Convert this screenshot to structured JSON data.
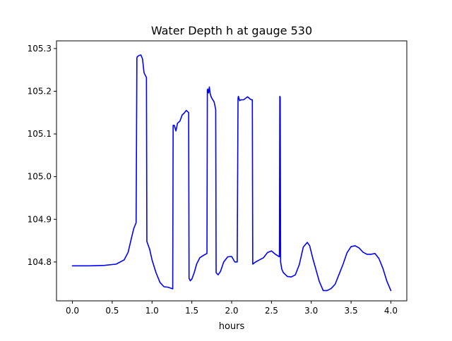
{
  "chart_data": {
    "type": "line",
    "title": "Water Depth h at gauge 530",
    "xlabel": "hours",
    "ylabel": "",
    "xlim": [
      -0.2,
      4.2
    ],
    "ylim": [
      104.709,
      105.318
    ],
    "xticks": [
      0.0,
      0.5,
      1.0,
      1.5,
      2.0,
      2.5,
      3.0,
      3.5,
      4.0
    ],
    "xtick_labels": [
      "0.0",
      "0.5",
      "1.0",
      "1.5",
      "2.0",
      "2.5",
      "3.0",
      "3.5",
      "4.0"
    ],
    "yticks": [
      104.8,
      104.9,
      105.0,
      105.1,
      105.2,
      105.3
    ],
    "ytick_labels": [
      "104.8",
      "104.9",
      "105.0",
      "105.1",
      "105.2",
      "105.3"
    ],
    "grid": false,
    "series": [
      {
        "color": "#0000ff",
        "x": [
          0.0,
          0.2,
          0.4,
          0.55,
          0.65,
          0.7,
          0.74,
          0.77,
          0.8,
          0.81,
          0.815,
          0.84,
          0.86,
          0.88,
          0.9,
          0.93,
          0.935,
          0.97,
          1.0,
          1.05,
          1.1,
          1.15,
          1.2,
          1.26,
          1.265,
          1.28,
          1.3,
          1.32,
          1.35,
          1.38,
          1.4,
          1.43,
          1.46,
          1.465,
          1.48,
          1.5,
          1.53,
          1.56,
          1.6,
          1.65,
          1.69,
          1.695,
          1.7,
          1.71,
          1.72,
          1.73,
          1.74,
          1.75,
          1.78,
          1.8,
          1.805,
          1.83,
          1.86,
          1.9,
          1.95,
          2.0,
          2.04,
          2.07,
          2.08,
          2.085,
          2.1,
          2.12,
          2.15,
          2.2,
          2.23,
          2.25,
          2.26,
          2.265,
          2.3,
          2.35,
          2.4,
          2.45,
          2.5,
          2.55,
          2.6,
          2.605,
          2.61,
          2.615,
          2.63,
          2.65,
          2.7,
          2.75,
          2.8,
          2.85,
          2.9,
          2.95,
          2.98,
          3.02,
          3.1,
          3.15,
          3.2,
          3.25,
          3.3,
          3.4,
          3.45,
          3.5,
          3.55,
          3.6,
          3.65,
          3.7,
          3.75,
          3.8,
          3.85,
          3.9,
          3.95,
          4.0
        ],
        "values": [
          104.791,
          104.791,
          104.792,
          104.795,
          104.805,
          104.823,
          104.855,
          104.878,
          104.892,
          105.278,
          105.281,
          105.284,
          105.285,
          105.276,
          105.243,
          105.232,
          104.848,
          104.83,
          104.805,
          104.775,
          104.752,
          104.742,
          104.741,
          104.737,
          105.12,
          105.12,
          105.107,
          105.125,
          105.13,
          105.145,
          105.148,
          105.155,
          105.15,
          104.762,
          104.756,
          104.76,
          104.775,
          104.795,
          104.81,
          104.816,
          104.82,
          105.203,
          105.205,
          105.196,
          105.21,
          105.195,
          105.188,
          105.184,
          105.175,
          105.157,
          104.775,
          104.77,
          104.778,
          104.8,
          104.812,
          104.813,
          104.8,
          104.8,
          105.183,
          105.188,
          105.178,
          105.18,
          105.18,
          105.187,
          105.182,
          105.18,
          105.18,
          104.795,
          104.8,
          104.805,
          104.81,
          104.822,
          104.826,
          104.818,
          104.812,
          105.188,
          105.186,
          104.8,
          104.783,
          104.775,
          104.766,
          104.765,
          104.77,
          104.794,
          104.835,
          104.846,
          104.838,
          104.808,
          104.755,
          104.733,
          104.733,
          104.738,
          104.748,
          104.795,
          104.822,
          104.836,
          104.838,
          104.833,
          104.823,
          104.818,
          104.818,
          104.82,
          104.808,
          104.785,
          104.755,
          104.733
        ]
      }
    ]
  }
}
